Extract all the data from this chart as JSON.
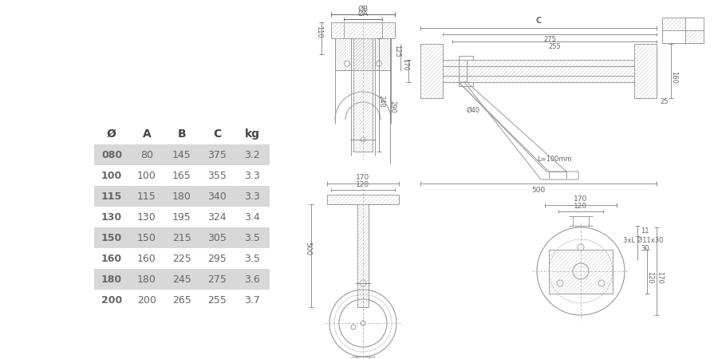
{
  "bg_color": "#ffffff",
  "table": {
    "headers": [
      "Ø",
      "A",
      "B",
      "C",
      "kg"
    ],
    "rows": [
      [
        "080",
        "80",
        "145",
        "375",
        "3.2"
      ],
      [
        "100",
        "100",
        "165",
        "355",
        "3.3"
      ],
      [
        "115",
        "115",
        "180",
        "340",
        "3.3"
      ],
      [
        "130",
        "130",
        "195",
        "324",
        "3.4"
      ],
      [
        "150",
        "150",
        "215",
        "305",
        "3.5"
      ],
      [
        "160",
        "160",
        "225",
        "295",
        "3.5"
      ],
      [
        "180",
        "180",
        "245",
        "275",
        "3.6"
      ],
      [
        "200",
        "200",
        "265",
        "255",
        "3.7"
      ]
    ],
    "shaded_rows": [
      0,
      2,
      4,
      6
    ],
    "shade_color": "#d8d8d8",
    "text_color": "#666666",
    "header_color": "#444444"
  },
  "line_color": "#999999",
  "dim_color": "#666666",
  "text_color": "#666666"
}
